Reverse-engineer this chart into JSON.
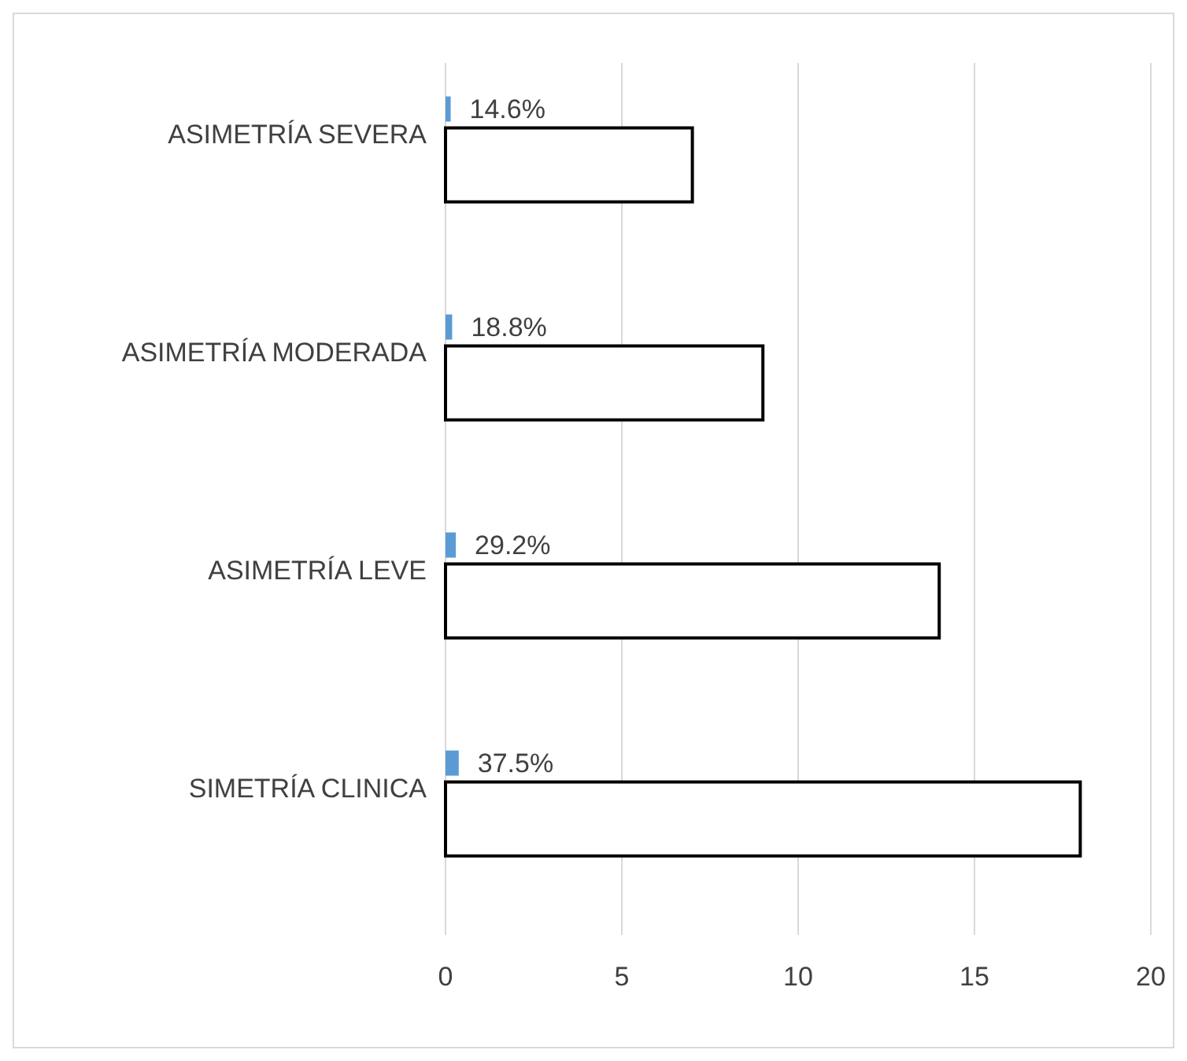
{
  "chart_data": {
    "type": "bar",
    "orientation": "horizontal",
    "categories": [
      "ASIMETRÍA SEVERA",
      "ASIMETRÍA MODERADA",
      "ASIMETRÍA LEVE",
      "SIMETRÍA CLINICA"
    ],
    "series": [
      {
        "color": "#5b9bd5",
        "values": [
          0.146,
          0.188,
          0.292,
          0.375
        ],
        "value_labels": [
          "14.6%",
          "18.8%",
          "29.2%",
          "37.5%"
        ]
      },
      {
        "color": "#ffffff",
        "values": [
          7,
          9,
          14,
          18
        ]
      }
    ],
    "xlim": [
      0,
      20
    ],
    "xticks": [
      0,
      5,
      10,
      15,
      20
    ],
    "grid": "x"
  }
}
